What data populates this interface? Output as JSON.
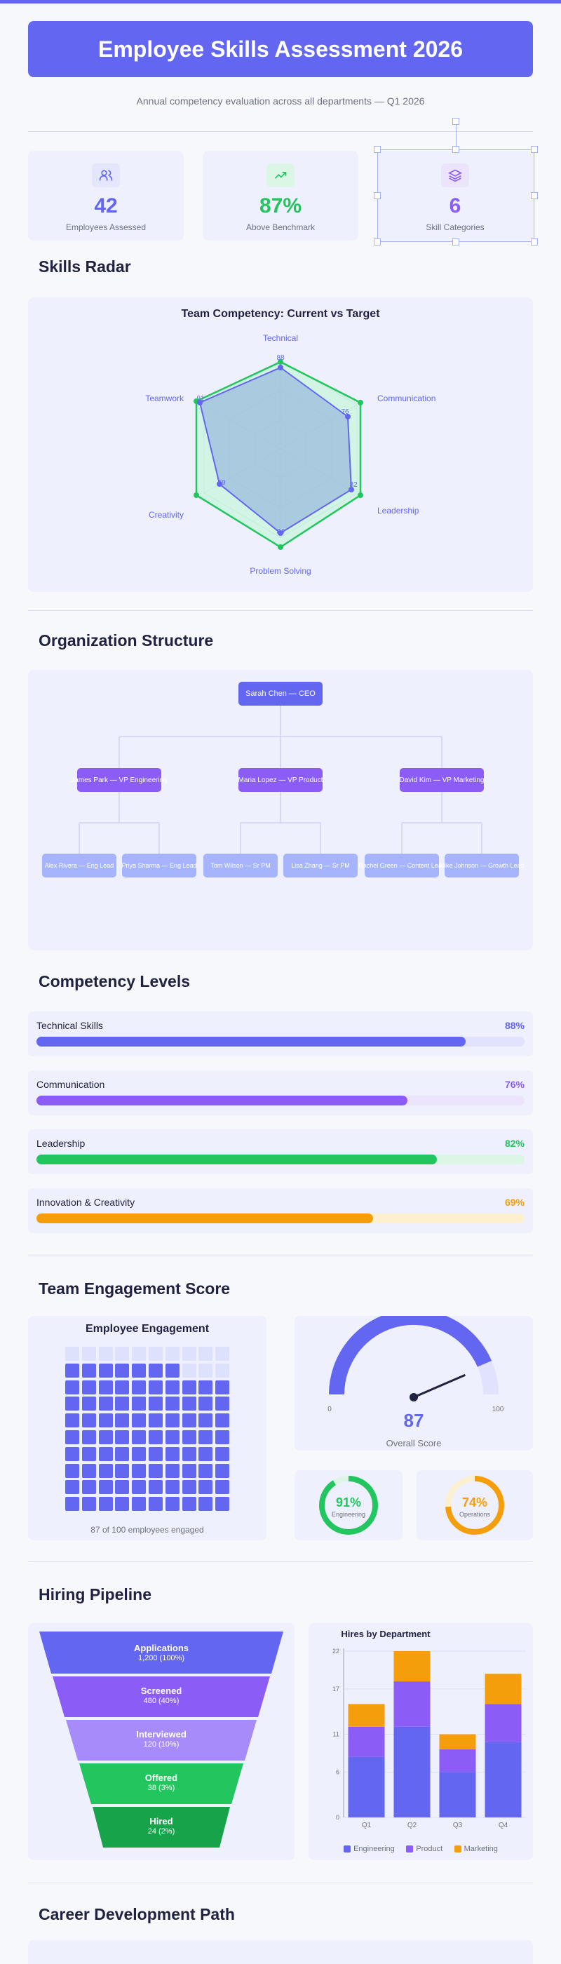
{
  "header": {
    "title": "Employee Skills Assessment 2026",
    "subtitle": "Annual competency evaluation across all departments — Q1 2026"
  },
  "stats": [
    {
      "value": "42",
      "label": "Employees Assessed",
      "icon": "users-icon",
      "color": "#6366f1"
    },
    {
      "value": "87%",
      "label": "Above Benchmark",
      "icon": "trending-up-icon",
      "color": "#22c55e"
    },
    {
      "value": "6",
      "label": "Skill Categories",
      "icon": "layers-icon",
      "color": "#8b5cf6"
    }
  ],
  "radar": {
    "section_title": "Skills Radar",
    "chart_title": "Team Competency: Current vs Target",
    "axes": [
      "Technical",
      "Communication",
      "Leadership",
      "Problem Solving",
      "Creativity",
      "Teamwork"
    ],
    "value_labels": [
      "88",
      "76",
      "82",
      "84",
      "69",
      "91"
    ]
  },
  "org": {
    "section_title": "Organization Structure",
    "ceo": "Sarah Chen — CEO",
    "vps": [
      "James Park — VP Engineering",
      "Maria Lopez — VP Product",
      "David Kim — VP Marketing"
    ],
    "leads": [
      "Alex Rivera — Eng Lead",
      "Priya Sharma — Eng Lead",
      "Tom Wilson — Sr PM",
      "Lisa Zhang — Sr PM",
      "Rachel Green — Content Lead",
      "Mike Johnson — Growth Lead"
    ]
  },
  "competency": {
    "section_title": "Competency Levels",
    "items": [
      {
        "label": "Technical Skills",
        "pct_text": "88%",
        "value": 88,
        "color": "#6366f1",
        "track": "#e0e3fb"
      },
      {
        "label": "Communication",
        "pct_text": "76%",
        "value": 76,
        "color": "#8b5cf6",
        "track": "#ece4fc"
      },
      {
        "label": "Leadership",
        "pct_text": "82%",
        "value": 82,
        "color": "#22c55e",
        "track": "#dcf6e5"
      },
      {
        "label": "Innovation & Creativity",
        "pct_text": "69%",
        "value": 69,
        "color": "#f59e0b",
        "track": "#fcf0cf"
      }
    ]
  },
  "engagement": {
    "section_title": "Team Engagement Score",
    "waffle_title": "Employee Engagement",
    "engaged": 87,
    "total": 100,
    "waffle_caption": "87 of 100 employees engaged",
    "gauge_value": "87",
    "gauge_min": "0",
    "gauge_max": "100",
    "gauge_caption": "Overall Score",
    "donuts": [
      {
        "pct": "91%",
        "label": "Engineering",
        "value": 91,
        "color": "#22c55e"
      },
      {
        "pct": "74%",
        "label": "Operations",
        "value": 74,
        "color": "#f59e0b"
      }
    ]
  },
  "hiring": {
    "section_title": "Hiring Pipeline",
    "funnel": [
      {
        "stage": "Applications",
        "detail": "1,200 (100%)",
        "color": "#6366f1"
      },
      {
        "stage": "Screened",
        "detail": "480 (40%)",
        "color": "#8b5cf6"
      },
      {
        "stage": "Interviewed",
        "detail": "120 (10%)",
        "color": "#a78bfa"
      },
      {
        "stage": "Offered",
        "detail": "38 (3%)",
        "color": "#22c55e"
      },
      {
        "stage": "Hired",
        "detail": "24 (2%)",
        "color": "#16a34a"
      }
    ]
  },
  "chart_data": {
    "type": "bar",
    "title": "Hires by Department",
    "categories": [
      "Q1",
      "Q2",
      "Q3",
      "Q4"
    ],
    "stacked": true,
    "series": [
      {
        "name": "Engineering",
        "values": [
          8,
          12,
          6,
          10
        ],
        "color": "#6366f1"
      },
      {
        "name": "Product",
        "values": [
          4,
          6,
          3,
          5
        ],
        "color": "#8b5cf6"
      },
      {
        "name": "Marketing",
        "values": [
          3,
          4,
          2,
          4
        ],
        "color": "#f59e0b"
      }
    ],
    "yticks": [
      "0",
      "6",
      "11",
      "17",
      "22"
    ],
    "ylim": [
      0,
      22
    ],
    "legend": "bottom",
    "grid": true
  },
  "career": {
    "section_title": "Career Development Path"
  }
}
